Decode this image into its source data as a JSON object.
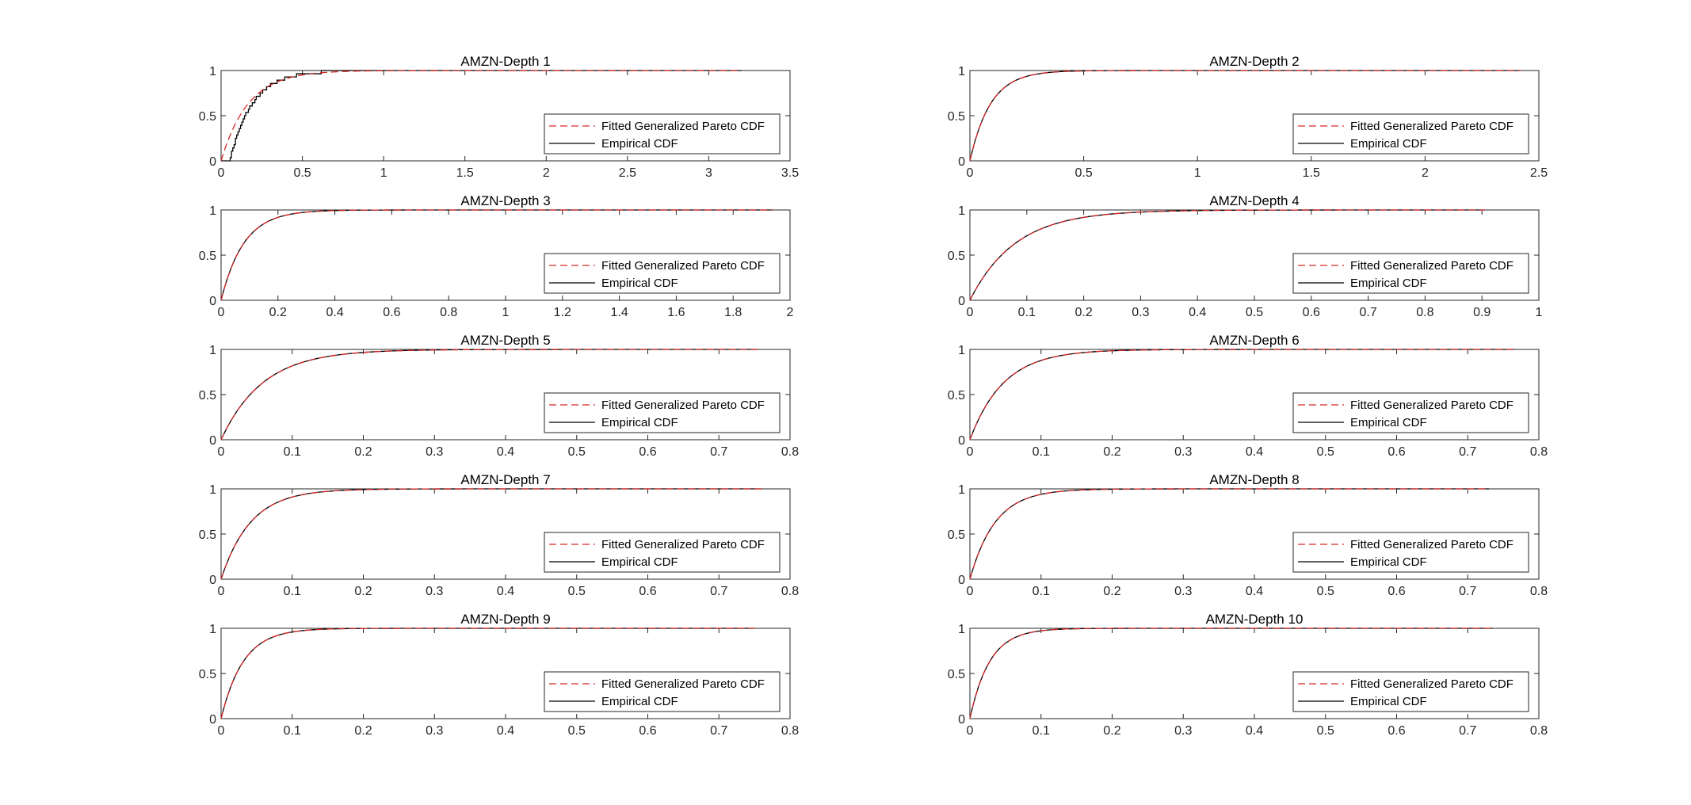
{
  "colors": {
    "background": "#ffffff",
    "fitted": "#d62728",
    "empirical": "#000000",
    "axis": "#262626"
  },
  "legend": {
    "fitted_label": "Fitted Generalized Pareto CDF",
    "empirical_label": "Empirical CDF",
    "placement": "lower-right"
  },
  "chart_data": [
    {
      "type": "line",
      "title": "AMZN-Depth 1",
      "xlim": [
        0,
        3.5
      ],
      "ylim": [
        0,
        1
      ],
      "xticks": [
        "0",
        "0.5",
        "1",
        "1.5",
        "2",
        "2.5",
        "3",
        "3.5"
      ],
      "yticks": [
        "0",
        "0.5",
        "1"
      ],
      "data_max": 3.2,
      "fitted": {
        "rate": 6.0,
        "shift": 0.0
      },
      "empirical": {
        "rate": 7.2,
        "shift": 0.05
      },
      "grid": false,
      "series": [
        {
          "name": "Fitted Generalized Pareto CDF"
        },
        {
          "name": "Empirical CDF"
        }
      ]
    },
    {
      "type": "line",
      "title": "AMZN-Depth 2",
      "xlim": [
        0,
        2.5
      ],
      "ylim": [
        0,
        1
      ],
      "xticks": [
        "0",
        "0.5",
        "1",
        "1.5",
        "2",
        "2.5"
      ],
      "yticks": [
        "0",
        "0.5",
        "1"
      ],
      "data_max": 2.42,
      "fitted": {
        "rate": 11.0,
        "shift": 0.0
      },
      "empirical": {
        "rate": 11.0,
        "shift": 0.0
      },
      "grid": false,
      "series": [
        {
          "name": "Fitted Generalized Pareto CDF"
        },
        {
          "name": "Empirical CDF"
        }
      ]
    },
    {
      "type": "line",
      "title": "AMZN-Depth 3",
      "xlim": [
        0,
        2
      ],
      "ylim": [
        0,
        1
      ],
      "xticks": [
        "0",
        "0.2",
        "0.4",
        "0.6",
        "0.8",
        "1",
        "1.2",
        "1.4",
        "1.6",
        "1.8",
        "2"
      ],
      "yticks": [
        "0",
        "0.5",
        "1"
      ],
      "data_max": 1.94,
      "fitted": {
        "rate": 12.5,
        "shift": 0.0
      },
      "empirical": {
        "rate": 12.5,
        "shift": 0.0
      },
      "grid": false,
      "series": [
        {
          "name": "Fitted Generalized Pareto CDF"
        },
        {
          "name": "Empirical CDF"
        }
      ]
    },
    {
      "type": "line",
      "title": "AMZN-Depth 4",
      "xlim": [
        0,
        1
      ],
      "ylim": [
        0,
        1
      ],
      "xticks": [
        "0",
        "0.1",
        "0.2",
        "0.3",
        "0.4",
        "0.5",
        "0.6",
        "0.7",
        "0.8",
        "0.9",
        "1"
      ],
      "yticks": [
        "0",
        "0.5",
        "1"
      ],
      "data_max": 0.905,
      "fitted": {
        "rate": 12.5,
        "shift": 0.0
      },
      "empirical": {
        "rate": 12.5,
        "shift": 0.0
      },
      "grid": false,
      "series": [
        {
          "name": "Fitted Generalized Pareto CDF"
        },
        {
          "name": "Empirical CDF"
        }
      ]
    },
    {
      "type": "line",
      "title": "AMZN-Depth 5",
      "xlim": [
        0,
        0.8
      ],
      "ylim": [
        0,
        1
      ],
      "xticks": [
        "0",
        "0.1",
        "0.2",
        "0.3",
        "0.4",
        "0.5",
        "0.6",
        "0.7",
        "0.8"
      ],
      "yticks": [
        "0",
        "0.5",
        "1"
      ],
      "data_max": 0.755,
      "fitted": {
        "rate": 17.0,
        "shift": 0.0
      },
      "empirical": {
        "rate": 17.0,
        "shift": 0.0
      },
      "grid": false,
      "series": [
        {
          "name": "Fitted Generalized Pareto CDF"
        },
        {
          "name": "Empirical CDF"
        }
      ]
    },
    {
      "type": "line",
      "title": "AMZN-Depth 6",
      "xlim": [
        0,
        0.8
      ],
      "ylim": [
        0,
        1
      ],
      "xticks": [
        "0",
        "0.1",
        "0.2",
        "0.3",
        "0.4",
        "0.5",
        "0.6",
        "0.7",
        "0.8"
      ],
      "yticks": [
        "0",
        "0.5",
        "1"
      ],
      "data_max": 0.765,
      "fitted": {
        "rate": 21.0,
        "shift": 0.0
      },
      "empirical": {
        "rate": 21.0,
        "shift": 0.0
      },
      "grid": false,
      "series": [
        {
          "name": "Fitted Generalized Pareto CDF"
        },
        {
          "name": "Empirical CDF"
        }
      ]
    },
    {
      "type": "line",
      "title": "AMZN-Depth 7",
      "xlim": [
        0,
        0.8
      ],
      "ylim": [
        0,
        1
      ],
      "xticks": [
        "0",
        "0.1",
        "0.2",
        "0.3",
        "0.4",
        "0.5",
        "0.6",
        "0.7",
        "0.8"
      ],
      "yticks": [
        "0",
        "0.5",
        "1"
      ],
      "data_max": 0.76,
      "fitted": {
        "rate": 24.0,
        "shift": 0.0
      },
      "empirical": {
        "rate": 24.0,
        "shift": 0.0
      },
      "grid": false,
      "series": [
        {
          "name": "Fitted Generalized Pareto CDF"
        },
        {
          "name": "Empirical CDF"
        }
      ]
    },
    {
      "type": "line",
      "title": "AMZN-Depth 8",
      "xlim": [
        0,
        0.8
      ],
      "ylim": [
        0,
        1
      ],
      "xticks": [
        "0",
        "0.1",
        "0.2",
        "0.3",
        "0.4",
        "0.5",
        "0.6",
        "0.7",
        "0.8"
      ],
      "yticks": [
        "0",
        "0.5",
        "1"
      ],
      "data_max": 0.73,
      "fitted": {
        "rate": 28.0,
        "shift": 0.0
      },
      "empirical": {
        "rate": 28.0,
        "shift": 0.0
      },
      "grid": false,
      "series": [
        {
          "name": "Fitted Generalized Pareto CDF"
        },
        {
          "name": "Empirical CDF"
        }
      ]
    },
    {
      "type": "line",
      "title": "AMZN-Depth 9",
      "xlim": [
        0,
        0.8
      ],
      "ylim": [
        0,
        1
      ],
      "xticks": [
        "0",
        "0.1",
        "0.2",
        "0.3",
        "0.4",
        "0.5",
        "0.6",
        "0.7",
        "0.8"
      ],
      "yticks": [
        "0",
        "0.5",
        "1"
      ],
      "data_max": 0.75,
      "fitted": {
        "rate": 32.0,
        "shift": 0.0
      },
      "empirical": {
        "rate": 32.0,
        "shift": 0.0
      },
      "grid": false,
      "series": [
        {
          "name": "Fitted Generalized Pareto CDF"
        },
        {
          "name": "Empirical CDF"
        }
      ]
    },
    {
      "type": "line",
      "title": "AMZN-Depth 10",
      "xlim": [
        0,
        0.8
      ],
      "ylim": [
        0,
        1
      ],
      "xticks": [
        "0",
        "0.1",
        "0.2",
        "0.3",
        "0.4",
        "0.5",
        "0.6",
        "0.7",
        "0.8"
      ],
      "yticks": [
        "0",
        "0.5",
        "1"
      ],
      "data_max": 0.735,
      "fitted": {
        "rate": 36.0,
        "shift": 0.0
      },
      "empirical": {
        "rate": 36.0,
        "shift": 0.0
      },
      "grid": false,
      "series": [
        {
          "name": "Fitted Generalized Pareto CDF"
        },
        {
          "name": "Empirical CDF"
        }
      ]
    }
  ]
}
